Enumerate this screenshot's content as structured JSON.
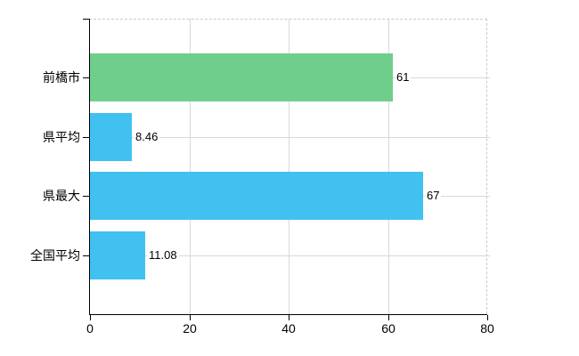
{
  "chart_data": {
    "type": "bar",
    "orientation": "horizontal",
    "title": "",
    "xlabel": "",
    "ylabel": "",
    "categories": [
      "前橋市",
      "県平均",
      "県最大",
      "全国平均"
    ],
    "values": [
      61,
      8.46,
      67,
      11.08
    ],
    "value_labels": [
      "61",
      "8.46",
      "67",
      "11.08"
    ],
    "bar_colors": [
      "#6FCE8C",
      "#41C1F0",
      "#41C1F0",
      "#41C1F0"
    ],
    "xlim": [
      0,
      80
    ],
    "x_ticks": [
      0,
      20,
      40,
      60,
      80
    ],
    "x_tick_labels": [
      "0",
      "20",
      "40",
      "60",
      "80"
    ],
    "grid": true,
    "legend": "none",
    "styles": {
      "axis_color": "#000000",
      "grid_color": "#d9d9d9",
      "row_line_color": "#d8d8d8",
      "dashed_border_color": "#c9c9c9",
      "background": "#ffffff",
      "text_color": "#000000"
    }
  }
}
